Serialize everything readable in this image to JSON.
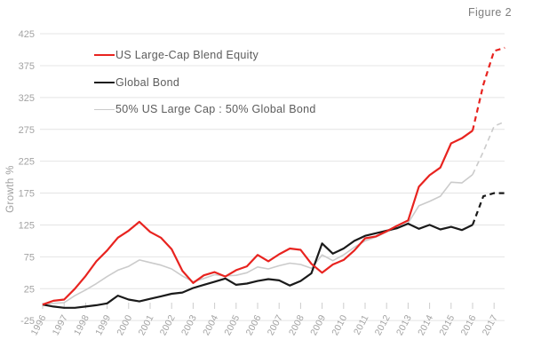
{
  "figure_label": "Figure 2",
  "chart_data": {
    "type": "line",
    "title": "Figure 2",
    "ylabel": "Growth %",
    "x_start": 1996,
    "x_step": 0.5,
    "x_end": 2017.5,
    "x_tick_years": [
      1996,
      1997,
      1998,
      1999,
      2000,
      2001,
      2002,
      2003,
      2004,
      2005,
      2006,
      2007,
      2008,
      2009,
      2010,
      2011,
      2012,
      2013,
      2014,
      2015,
      2016,
      2017
    ],
    "y_ticks": [
      -25,
      25,
      75,
      125,
      175,
      225,
      275,
      325,
      375,
      425
    ],
    "ylim": [
      -25,
      425
    ],
    "grid": true,
    "legend_position": "top-left",
    "dashed_from_x": 2016,
    "colors": {
      "grid": "#e4e4e4",
      "tick_mark": "#cccccc",
      "axis_text": "#a3a3a3",
      "ylabel_text": "#9e9e9e",
      "legend_text": "#5c5c5c",
      "figure_text": "#7d7d7d"
    },
    "series": [
      {
        "name": "US Large-Cap Blend Equity",
        "color": "#e8231f",
        "values": [
          0,
          6,
          8,
          25,
          45,
          68,
          85,
          105,
          116,
          130,
          114,
          105,
          87,
          53,
          34,
          46,
          51,
          44,
          54,
          60,
          78,
          68,
          79,
          88,
          86,
          64,
          50,
          63,
          70,
          85,
          104,
          107,
          115,
          124,
          132,
          185,
          203,
          215,
          253,
          261,
          273,
          345,
          398,
          403
        ]
      },
      {
        "name": "Global Bond",
        "color": "#1a1a1a",
        "values": [
          0,
          -3,
          -5,
          -5,
          -3,
          -1,
          2,
          14,
          8,
          5,
          9,
          13,
          17,
          19,
          26,
          31,
          36,
          41,
          31,
          33,
          37,
          40,
          38,
          30,
          37,
          49,
          96,
          80,
          88,
          100,
          108,
          112,
          116,
          120,
          127,
          119,
          125,
          118,
          122,
          117,
          125,
          170,
          175,
          175
        ]
      },
      {
        "name": "50% US Large Cap : 50% Global Bond",
        "color": "#cbcbcb",
        "values": [
          0,
          2,
          3,
          14,
          23,
          33,
          44,
          54,
          60,
          70,
          66,
          62,
          56,
          45,
          36,
          41,
          47,
          45,
          46,
          50,
          59,
          56,
          61,
          65,
          63,
          57,
          78,
          69,
          78,
          90,
          100,
          106,
          114,
          121,
          128,
          155,
          162,
          170,
          192,
          191,
          204,
          240,
          280,
          287
        ]
      }
    ]
  }
}
